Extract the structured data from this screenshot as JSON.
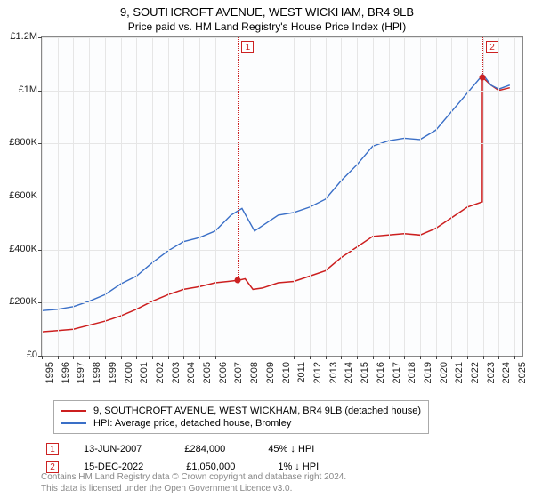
{
  "title": "9, SOUTHCROFT AVENUE, WEST WICKHAM, BR4 9LB",
  "subtitle": "Price paid vs. HM Land Registry's House Price Index (HPI)",
  "chart": {
    "type": "line",
    "background_color": "#fcfdfe",
    "border_color": "#888888",
    "grid_color": "#e6e6e6",
    "ylim": [
      0,
      1200000
    ],
    "ytick_step": 200000,
    "yticks": [
      0,
      200000,
      400000,
      600000,
      800000,
      1000000,
      1200000
    ],
    "ytick_labels": [
      "£0",
      "£200K",
      "£400K",
      "£600K",
      "£800K",
      "£1M",
      "£1.2M"
    ],
    "xlim": [
      1995,
      2025.5
    ],
    "xticks": [
      1995,
      1996,
      1997,
      1998,
      1999,
      2000,
      2001,
      2002,
      2003,
      2004,
      2005,
      2006,
      2007,
      2008,
      2009,
      2010,
      2011,
      2012,
      2013,
      2014,
      2015,
      2016,
      2017,
      2018,
      2019,
      2020,
      2021,
      2022,
      2023,
      2024,
      2025
    ],
    "title_fontsize": 13,
    "label_fontsize": 11,
    "series": [
      {
        "name": "price_paid",
        "label": "9, SOUTHCROFT AVENUE, WEST WICKHAM, BR4 9LB (detached house)",
        "color": "#cc1f1f",
        "line_width": 1.5,
        "points": [
          [
            1995,
            90000
          ],
          [
            1996,
            95000
          ],
          [
            1997,
            100000
          ],
          [
            1998,
            115000
          ],
          [
            1999,
            130000
          ],
          [
            2000,
            150000
          ],
          [
            2001,
            175000
          ],
          [
            2002,
            205000
          ],
          [
            2003,
            230000
          ],
          [
            2004,
            250000
          ],
          [
            2005,
            260000
          ],
          [
            2006,
            275000
          ],
          [
            2007.45,
            284000
          ],
          [
            2007.9,
            290000
          ],
          [
            2008.4,
            250000
          ],
          [
            2009,
            255000
          ],
          [
            2010,
            275000
          ],
          [
            2011,
            280000
          ],
          [
            2012,
            300000
          ],
          [
            2013,
            320000
          ],
          [
            2014,
            370000
          ],
          [
            2015,
            410000
          ],
          [
            2016,
            450000
          ],
          [
            2017,
            455000
          ],
          [
            2018,
            460000
          ],
          [
            2019,
            455000
          ],
          [
            2020,
            480000
          ],
          [
            2021,
            520000
          ],
          [
            2022,
            560000
          ],
          [
            2022.95,
            580000
          ],
          [
            2022.96,
            1050000
          ],
          [
            2023.5,
            1020000
          ],
          [
            2024,
            1000000
          ],
          [
            2024.7,
            1010000
          ]
        ]
      },
      {
        "name": "hpi",
        "label": "HPI: Average price, detached house, Bromley",
        "color": "#3a6fc7",
        "line_width": 1.4,
        "points": [
          [
            1995,
            170000
          ],
          [
            1996,
            175000
          ],
          [
            1997,
            185000
          ],
          [
            1998,
            205000
          ],
          [
            1999,
            230000
          ],
          [
            2000,
            270000
          ],
          [
            2001,
            300000
          ],
          [
            2002,
            350000
          ],
          [
            2003,
            395000
          ],
          [
            2004,
            430000
          ],
          [
            2005,
            445000
          ],
          [
            2006,
            470000
          ],
          [
            2007,
            530000
          ],
          [
            2007.7,
            555000
          ],
          [
            2008.5,
            470000
          ],
          [
            2009,
            490000
          ],
          [
            2010,
            530000
          ],
          [
            2011,
            540000
          ],
          [
            2012,
            560000
          ],
          [
            2013,
            590000
          ],
          [
            2014,
            660000
          ],
          [
            2015,
            720000
          ],
          [
            2016,
            790000
          ],
          [
            2017,
            810000
          ],
          [
            2018,
            820000
          ],
          [
            2019,
            815000
          ],
          [
            2020,
            850000
          ],
          [
            2021,
            920000
          ],
          [
            2022,
            990000
          ],
          [
            2023,
            1060000
          ],
          [
            2023.5,
            1020000
          ],
          [
            2024,
            1005000
          ],
          [
            2024.7,
            1020000
          ]
        ]
      }
    ],
    "markers": [
      {
        "id": "1",
        "x": 2007.45,
        "y": 284000
      },
      {
        "id": "2",
        "x": 2022.96,
        "y": 1050000
      }
    ]
  },
  "legend": {
    "items": [
      {
        "color": "#cc1f1f",
        "label": "9, SOUTHCROFT AVENUE, WEST WICKHAM, BR4 9LB (detached house)"
      },
      {
        "color": "#3a6fc7",
        "label": "HPI: Average price, detached house, Bromley"
      }
    ]
  },
  "data_rows": [
    {
      "marker": "1",
      "date": "13-JUN-2007",
      "price": "£284,000",
      "delta": "45%",
      "direction": "down",
      "vs": "HPI"
    },
    {
      "marker": "2",
      "date": "15-DEC-2022",
      "price": "£1,050,000",
      "delta": "1%",
      "direction": "down",
      "vs": "HPI"
    }
  ],
  "footer": {
    "line1": "Contains HM Land Registry data © Crown copyright and database right 2024.",
    "line2": "This data is licensed under the Open Government Licence v3.0."
  }
}
